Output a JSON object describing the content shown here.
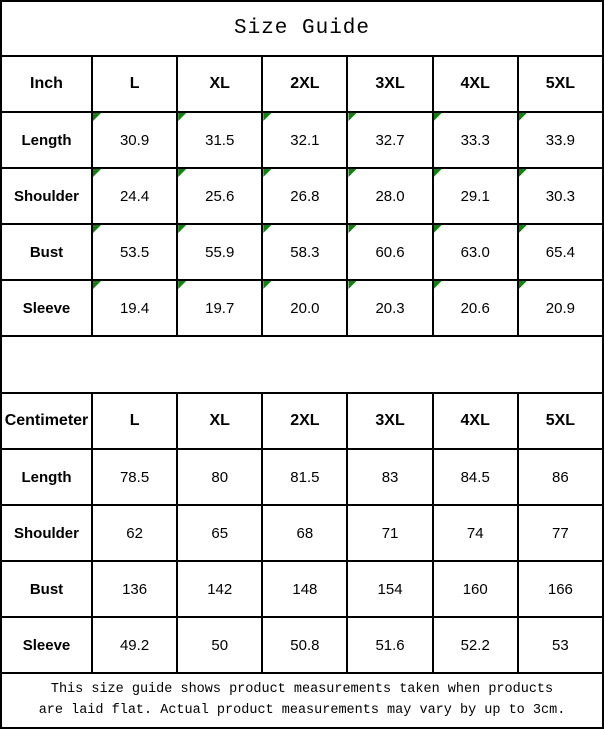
{
  "title": "Size Guide",
  "colors": {
    "flag_green": "#128112",
    "border": "#000000",
    "background": "#ffffff"
  },
  "footer": {
    "line1": "This size guide shows product measurements taken when products",
    "line2": "are laid flat. Actual product measurements may vary by up to 3cm."
  },
  "chart_data": [
    {
      "type": "table",
      "title": "Size Guide",
      "unit": "Inch",
      "columns": [
        "L",
        "XL",
        "2XL",
        "3XL",
        "4XL",
        "5XL"
      ],
      "rows": [
        {
          "label": "Length",
          "values": [
            "30.9",
            "31.5",
            "32.1",
            "32.7",
            "33.3",
            "33.9"
          ]
        },
        {
          "label": "Shoulder",
          "values": [
            "24.4",
            "25.6",
            "26.8",
            "28.0",
            "29.1",
            "30.3"
          ]
        },
        {
          "label": "Bust",
          "values": [
            "53.5",
            "55.9",
            "58.3",
            "60.6",
            "63.0",
            "65.4"
          ]
        },
        {
          "label": "Sleeve",
          "values": [
            "19.4",
            "19.7",
            "20.0",
            "20.3",
            "20.6",
            "20.9"
          ]
        }
      ],
      "cell_corner_flags": true
    },
    {
      "type": "table",
      "title": "Size Guide",
      "unit": "Centimeter",
      "columns": [
        "L",
        "XL",
        "2XL",
        "3XL",
        "4XL",
        "5XL"
      ],
      "rows": [
        {
          "label": "Length",
          "values": [
            "78.5",
            "80",
            "81.5",
            "83",
            "84.5",
            "86"
          ]
        },
        {
          "label": "Shoulder",
          "values": [
            "62",
            "65",
            "68",
            "71",
            "74",
            "77"
          ]
        },
        {
          "label": "Bust",
          "values": [
            "136",
            "142",
            "148",
            "154",
            "160",
            "166"
          ]
        },
        {
          "label": "Sleeve",
          "values": [
            "49.2",
            "50",
            "50.8",
            "51.6",
            "52.2",
            "53"
          ]
        }
      ],
      "cell_corner_flags": false
    }
  ]
}
